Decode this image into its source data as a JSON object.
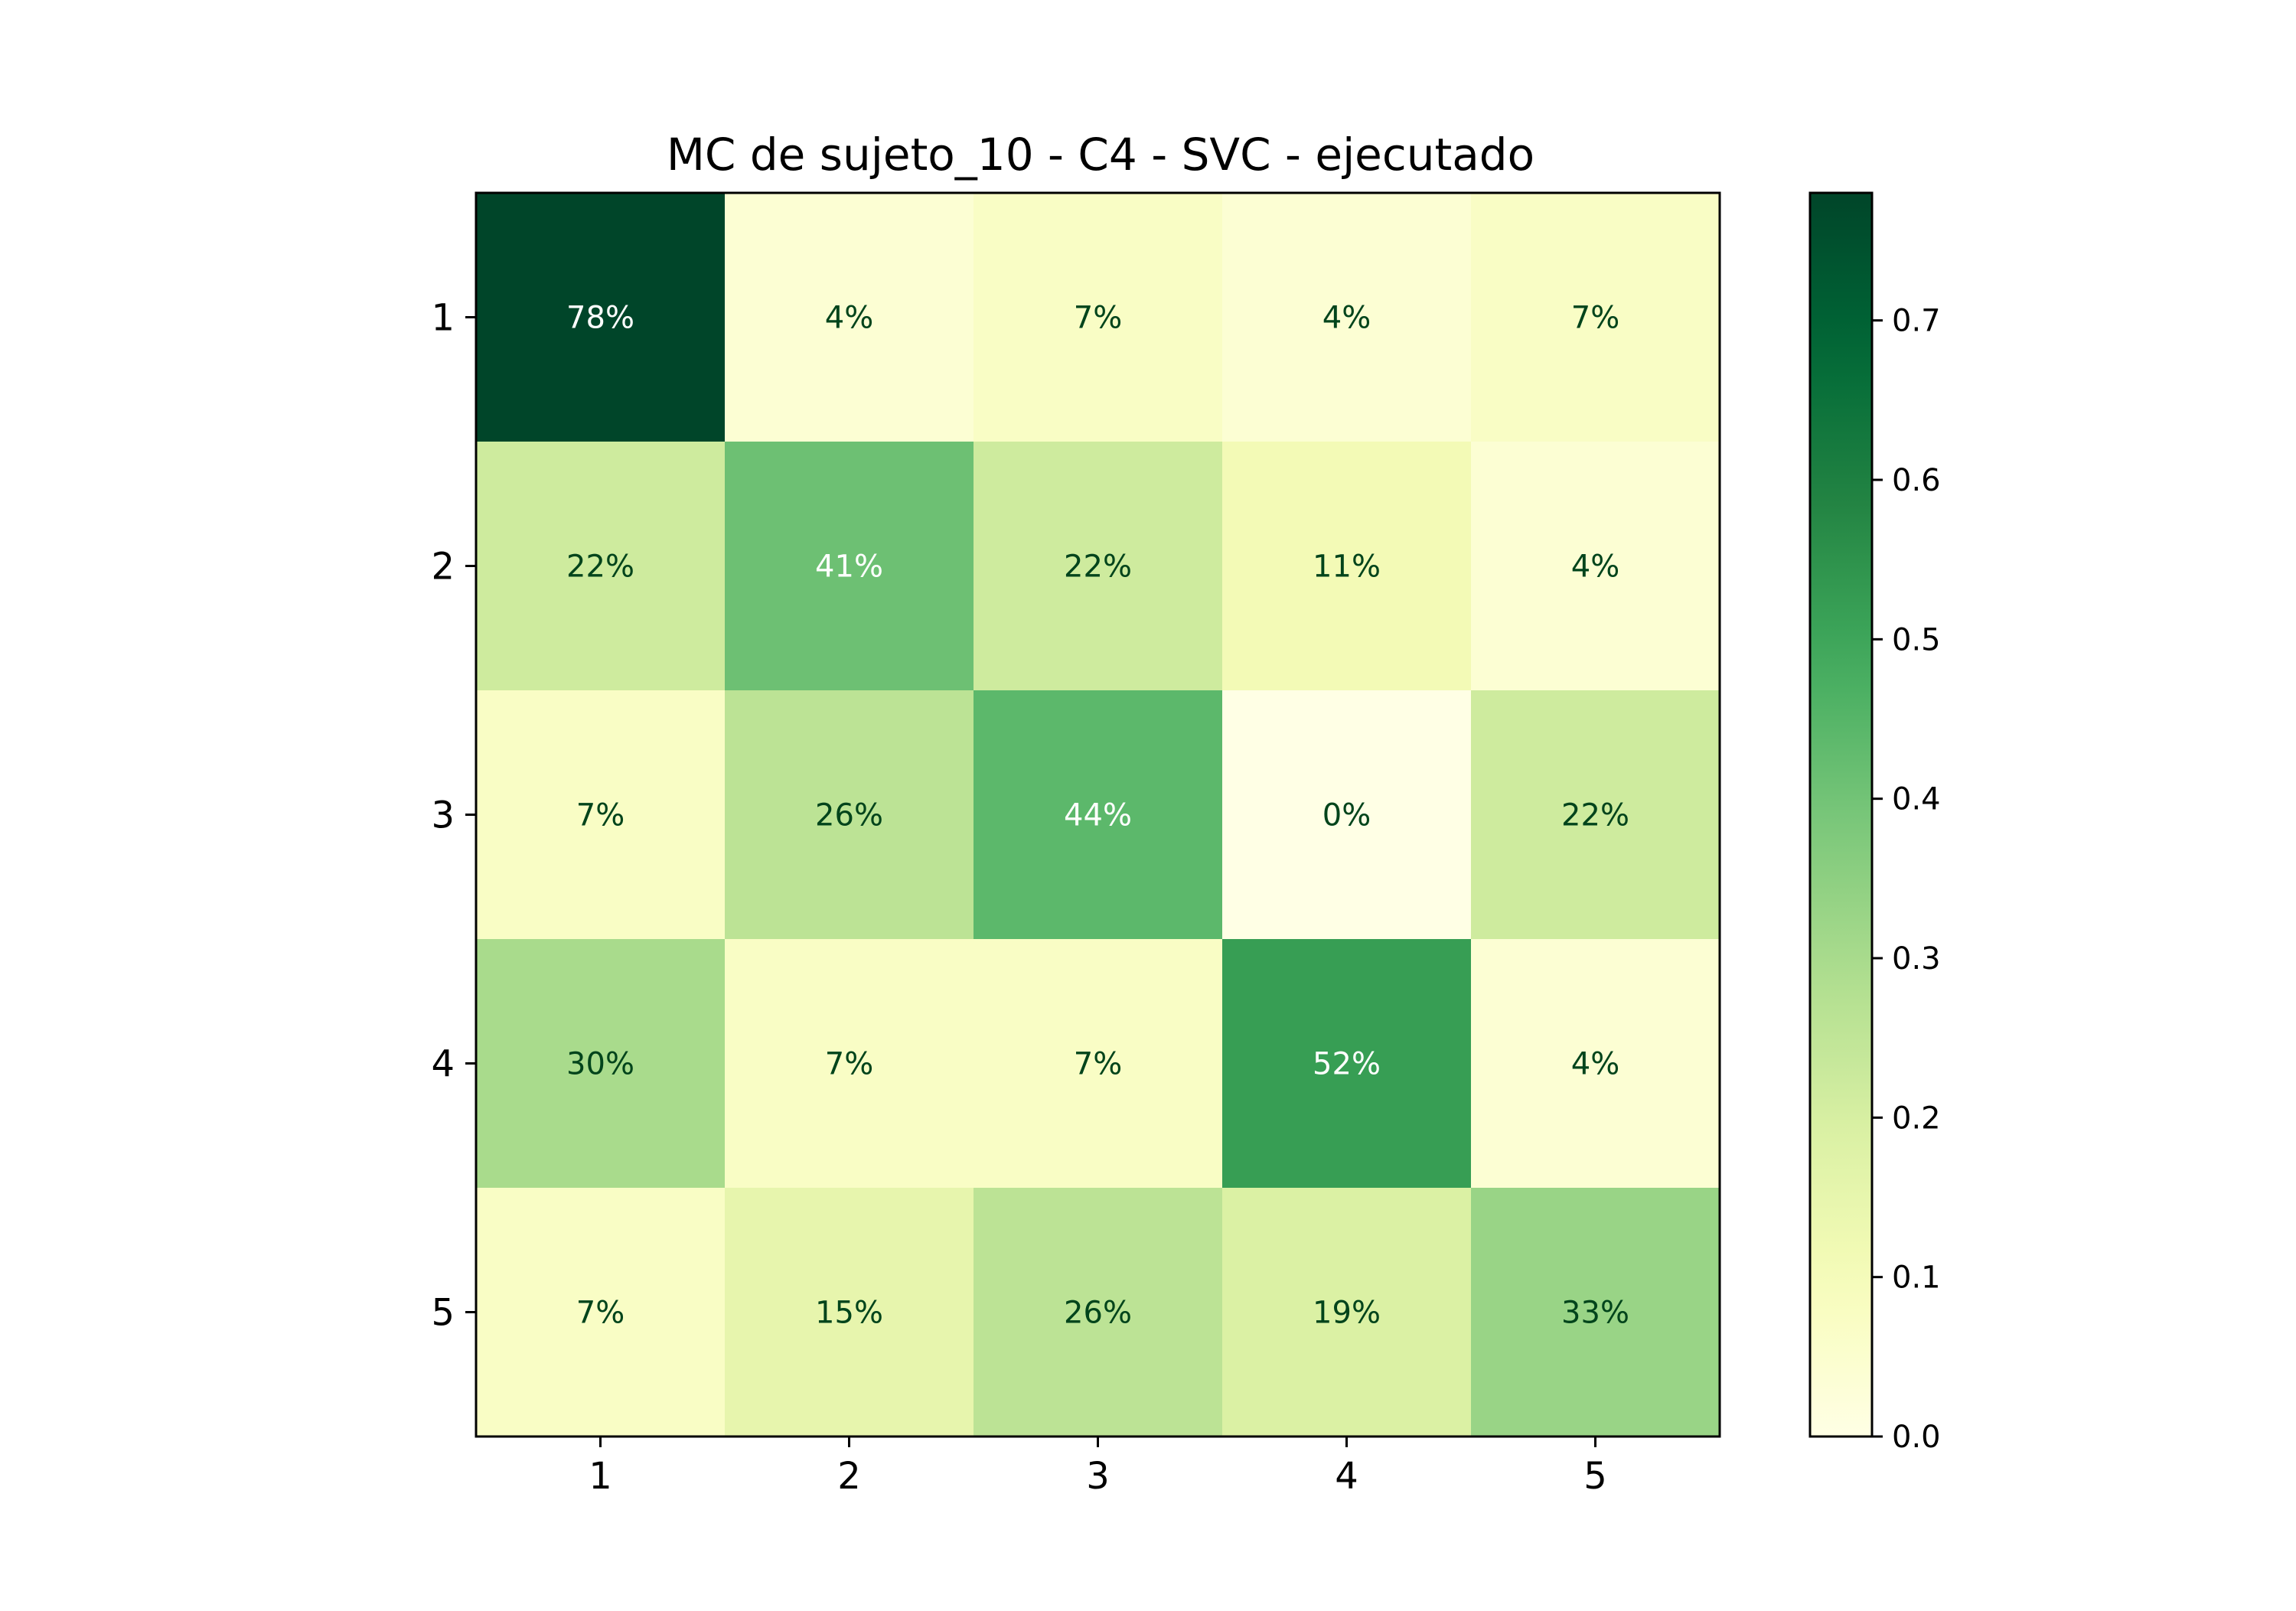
{
  "chart_data": {
    "type": "heatmap",
    "title": "MC de sujeto_10 - C4 - SVC - ejecutado",
    "xlabel": "",
    "ylabel": "",
    "x_categories": [
      "1",
      "2",
      "3",
      "4",
      "5"
    ],
    "y_categories": [
      "1",
      "2",
      "3",
      "4",
      "5"
    ],
    "values": [
      [
        0.78,
        0.04,
        0.07,
        0.04,
        0.07
      ],
      [
        0.22,
        0.41,
        0.22,
        0.11,
        0.04
      ],
      [
        0.07,
        0.26,
        0.44,
        0.0,
        0.22
      ],
      [
        0.3,
        0.07,
        0.07,
        0.52,
        0.04
      ],
      [
        0.07,
        0.15,
        0.26,
        0.19,
        0.33
      ]
    ],
    "cell_labels": [
      [
        "78%",
        "4%",
        "7%",
        "4%",
        "7%"
      ],
      [
        "22%",
        "41%",
        "22%",
        "11%",
        "4%"
      ],
      [
        "7%",
        "26%",
        "44%",
        "0%",
        "22%"
      ],
      [
        "30%",
        "7%",
        "7%",
        "52%",
        "4%"
      ],
      [
        "7%",
        "15%",
        "26%",
        "19%",
        "33%"
      ]
    ],
    "colormap": "YlGn",
    "colorbar": {
      "range": [
        0.0,
        0.78
      ],
      "ticks": [
        0.0,
        0.1,
        0.2,
        0.3,
        0.4,
        0.5,
        0.6,
        0.7
      ],
      "tick_labels": [
        "0.0",
        "0.1",
        "0.2",
        "0.3",
        "0.4",
        "0.5",
        "0.6",
        "0.7"
      ]
    },
    "text_color_dark": "#00441b",
    "text_color_light": "#ffffff",
    "grid": false
  }
}
